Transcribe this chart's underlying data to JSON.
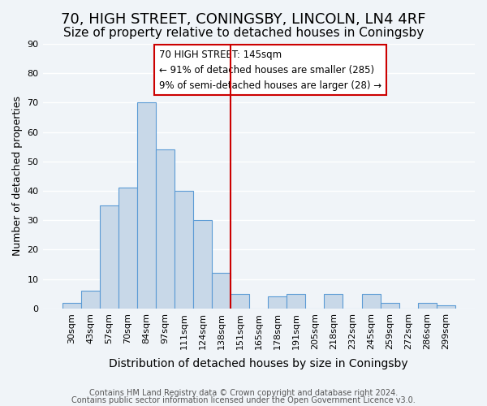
{
  "title": "70, HIGH STREET, CONINGSBY, LINCOLN, LN4 4RF",
  "subtitle": "Size of property relative to detached houses in Coningsby",
  "xlabel": "Distribution of detached houses by size in Coningsby",
  "ylabel": "Number of detached properties",
  "bar_color": "#c8d8e8",
  "bar_edge_color": "#5b9bd5",
  "bin_labels": [
    "30sqm",
    "43sqm",
    "57sqm",
    "70sqm",
    "84sqm",
    "97sqm",
    "111sqm",
    "124sqm",
    "138sqm",
    "151sqm",
    "165sqm",
    "178sqm",
    "191sqm",
    "205sqm",
    "218sqm",
    "232sqm",
    "245sqm",
    "259sqm",
    "272sqm",
    "286sqm",
    "299sqm"
  ],
  "bar_heights": [
    2,
    6,
    35,
    41,
    70,
    54,
    40,
    30,
    12,
    5,
    0,
    4,
    5,
    0,
    5,
    0,
    5,
    2,
    0,
    2,
    1
  ],
  "vline_x": 8.5,
  "vline_color": "#cc0000",
  "ylim": [
    0,
    90
  ],
  "yticks": [
    0,
    10,
    20,
    30,
    40,
    50,
    60,
    70,
    80,
    90
  ],
  "annotation_title": "70 HIGH STREET: 145sqm",
  "annotation_line1": "← 91% of detached houses are smaller (285)",
  "annotation_line2": "9% of semi-detached houses are larger (28) →",
  "footer_line1": "Contains HM Land Registry data © Crown copyright and database right 2024.",
  "footer_line2": "Contains public sector information licensed under the Open Government Licence v3.0.",
  "background_color": "#f0f4f8",
  "grid_color": "#ffffff",
  "title_fontsize": 13,
  "subtitle_fontsize": 11,
  "xlabel_fontsize": 10,
  "ylabel_fontsize": 9,
  "tick_fontsize": 8,
  "footer_fontsize": 7
}
